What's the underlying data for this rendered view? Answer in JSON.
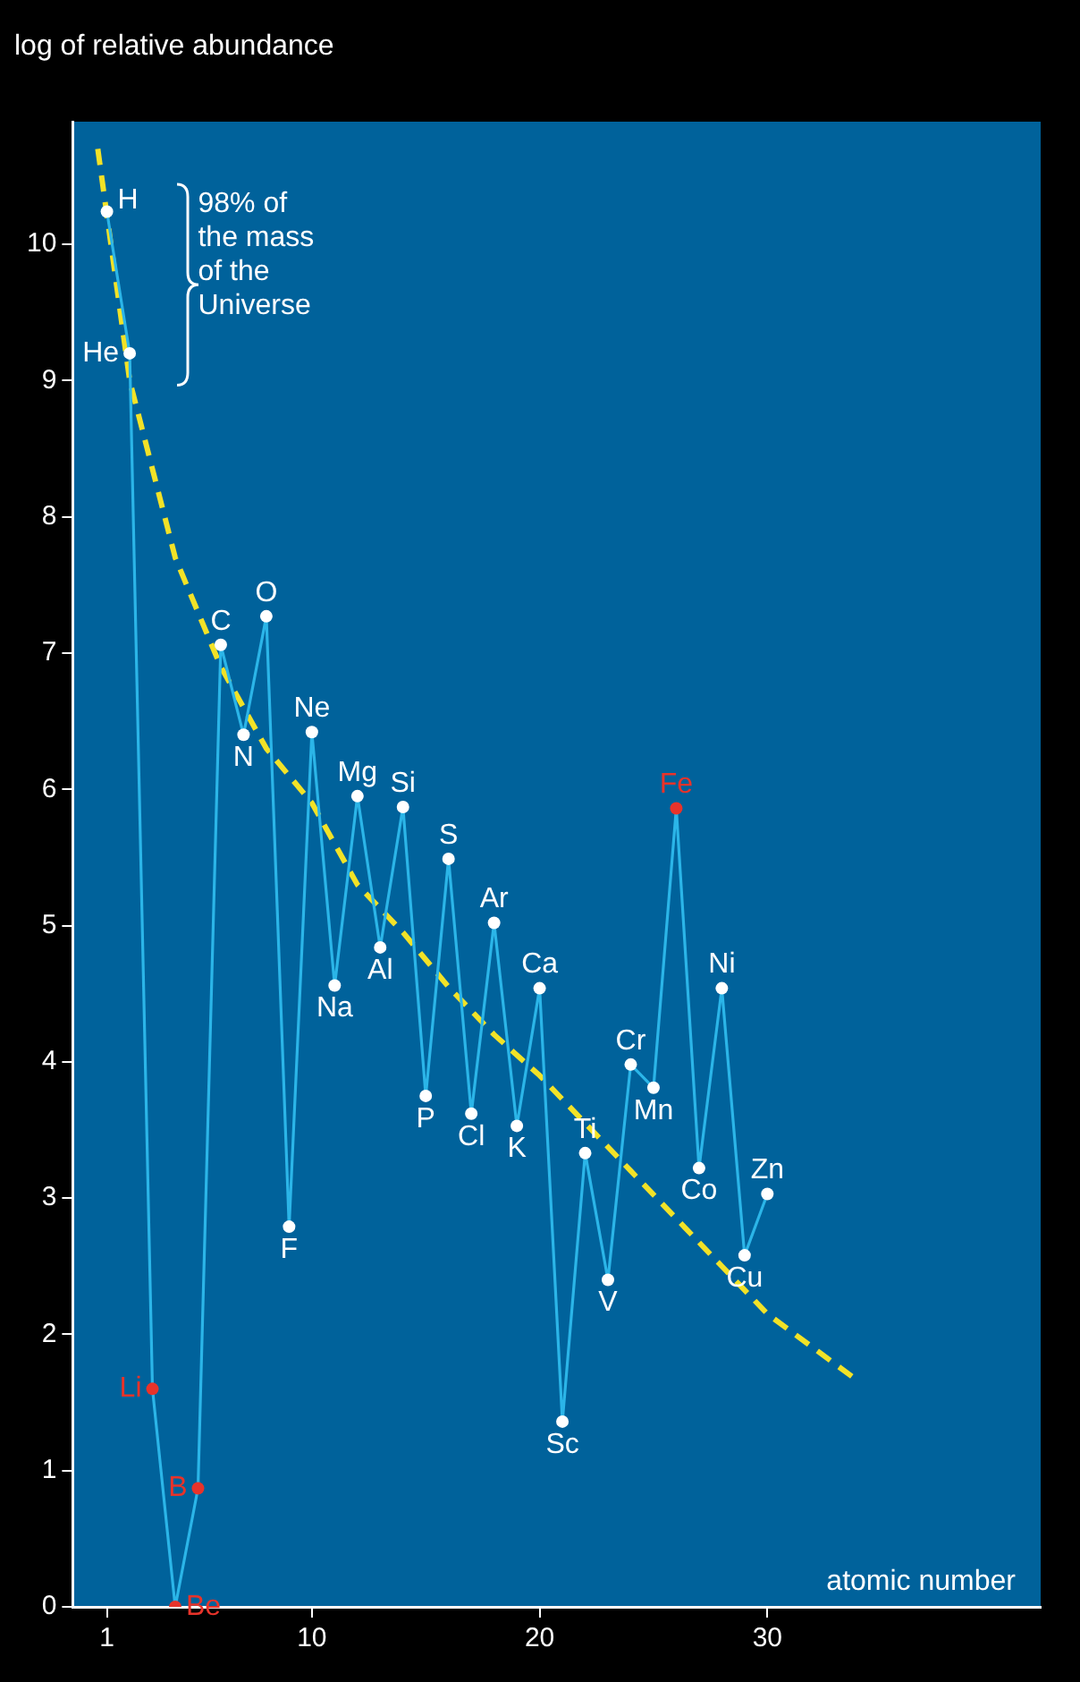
{
  "chart_data": {
    "type": "line",
    "xlabel": "atomic number",
    "ylabel": "log of relative abundance",
    "x": [
      1,
      2,
      3,
      4,
      5,
      6,
      7,
      8,
      9,
      10,
      11,
      12,
      13,
      14,
      15,
      16,
      17,
      18,
      19,
      20,
      21,
      22,
      23,
      24,
      25,
      26,
      27,
      28,
      29,
      30
    ],
    "xlim": [
      -0.5,
      42
    ],
    "xticks": [
      1,
      10,
      20,
      30
    ],
    "ylim": [
      0,
      10.9
    ],
    "yticks": [
      0,
      1,
      2,
      3,
      4,
      5,
      6,
      7,
      8,
      9,
      10
    ],
    "grid": false,
    "legend": false,
    "series": [
      {
        "type": "line",
        "color": "#2bb5e8",
        "marker": "circle",
        "colors": [
          "#ffffff",
          "#ffffff",
          "#e8332a",
          "#e8332a",
          "#e8332a",
          "#ffffff",
          "#ffffff",
          "#ffffff",
          "#ffffff",
          "#ffffff",
          "#ffffff",
          "#ffffff",
          "#ffffff",
          "#ffffff",
          "#ffffff",
          "#ffffff",
          "#ffffff",
          "#ffffff",
          "#ffffff",
          "#ffffff",
          "#ffffff",
          "#ffffff",
          "#ffffff",
          "#ffffff",
          "#ffffff",
          "#e8332a",
          "#ffffff",
          "#ffffff",
          "#ffffff",
          "#ffffff"
        ],
        "values": [
          10.24,
          9.2,
          1.6,
          0,
          0.87,
          7.06,
          6.4,
          7.27,
          2.79,
          6.42,
          4.56,
          5.95,
          4.84,
          5.87,
          3.75,
          5.49,
          3.62,
          5.02,
          3.53,
          4.54,
          1.36,
          3.33,
          2.4,
          3.98,
          3.81,
          5.86,
          3.22,
          4.54,
          2.58,
          3.03
        ]
      },
      {
        "type": "line",
        "color": "#f2e227",
        "marker": "none",
        "line_style": "dashed",
        "x": [
          0.6,
          2,
          4,
          6,
          8,
          10,
          12,
          14,
          16,
          18,
          20,
          22,
          24,
          26,
          28,
          30,
          33.8
        ],
        "values": [
          10.7,
          9.0,
          7.7,
          6.9,
          6.3,
          5.9,
          5.3,
          4.95,
          4.55,
          4.2,
          3.9,
          3.55,
          3.2,
          2.85,
          2.5,
          2.15,
          1.68
        ]
      }
    ],
    "annotations": [
      "98% of the mass of the Universe",
      {
        "text": "H",
        "x": 1,
        "y": 10.24
      },
      {
        "text": "He",
        "x": 2,
        "y": 9.2
      },
      {
        "text": "Li",
        "x": 3,
        "y": 1.6
      },
      {
        "text": "Be",
        "x": 4,
        "y": 0
      },
      {
        "text": "B",
        "x": 5,
        "y": 0.87
      },
      {
        "text": "C",
        "x": 6,
        "y": 7.06
      },
      {
        "text": "N",
        "x": 7,
        "y": 6.4
      },
      {
        "text": "O",
        "x": 8,
        "y": 7.27
      },
      {
        "text": "F",
        "x": 9,
        "y": 2.79
      },
      {
        "text": "Ne",
        "x": 10,
        "y": 6.42
      },
      {
        "text": "Na",
        "x": 11,
        "y": 4.56
      },
      {
        "text": "Mg",
        "x": 12,
        "y": 5.95
      },
      {
        "text": "Al",
        "x": 13,
        "y": 4.84
      },
      {
        "text": "Si",
        "x": 14,
        "y": 5.87
      },
      {
        "text": "P",
        "x": 15,
        "y": 3.75
      },
      {
        "text": "S",
        "x": 16,
        "y": 5.49
      },
      {
        "text": "Cl",
        "x": 17,
        "y": 3.62
      },
      {
        "text": "Ar",
        "x": 18,
        "y": 5.02
      },
      {
        "text": "K",
        "x": 19,
        "y": 3.53
      },
      {
        "text": "Ca",
        "x": 20,
        "y": 4.54
      },
      {
        "text": "Sc",
        "x": 21,
        "y": 1.36
      },
      {
        "text": "Ti",
        "x": 22,
        "y": 3.33
      },
      {
        "text": "V",
        "x": 23,
        "y": 2.4
      },
      {
        "text": "Cr",
        "x": 24,
        "y": 3.98
      },
      {
        "text": "Mn",
        "x": 25,
        "y": 3.81
      },
      {
        "text": "Fe",
        "x": 26,
        "y": 5.86
      },
      {
        "text": "Co",
        "x": 27,
        "y": 3.22
      },
      {
        "text": "Ni",
        "x": 28,
        "y": 4.54
      },
      {
        "text": "Cu",
        "x": 29,
        "y": 2.58
      },
      {
        "text": "Zn",
        "x": 30,
        "y": 3.03
      }
    ]
  }
}
